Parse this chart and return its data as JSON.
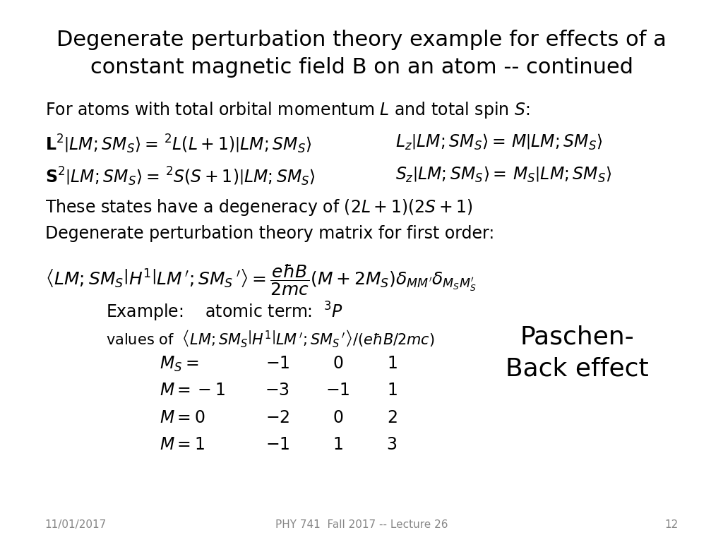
{
  "background_color": "#ffffff",
  "title_line1": "Degenerate perturbation theory example for effects of a",
  "title_line2": "constant magnetic field B on an atom -- continued",
  "title_fontsize": 22,
  "footer_date": "11/01/2017",
  "footer_course": "PHY 741  Fall 2017 -- Lecture 26",
  "footer_page": "12",
  "footer_fontsize": 11,
  "footer_color": "#888888"
}
